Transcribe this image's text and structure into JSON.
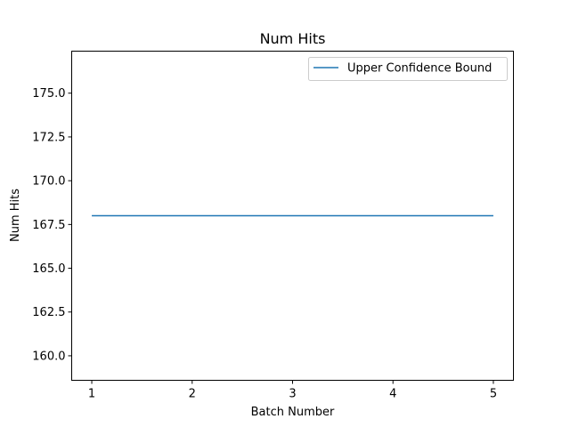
{
  "chart_data": {
    "type": "line",
    "title": "Num Hits",
    "xlabel": "Batch Number",
    "ylabel": "Num Hits",
    "x": [
      1,
      2,
      3,
      4,
      5
    ],
    "series": [
      {
        "name": "Upper Confidence Bound",
        "values": [
          168,
          168,
          168,
          168,
          168
        ],
        "color": "#1f77b4"
      }
    ],
    "xlim": [
      0.8,
      5.2
    ],
    "ylim": [
      158.6,
      177.4
    ],
    "xticks": [
      1,
      2,
      3,
      4,
      5
    ],
    "xtick_labels": [
      "1",
      "2",
      "3",
      "4",
      "5"
    ],
    "yticks": [
      160.0,
      162.5,
      165.0,
      167.5,
      170.0,
      172.5,
      175.0
    ],
    "ytick_labels": [
      "160.0",
      "162.5",
      "165.0",
      "167.5",
      "170.0",
      "172.5",
      "175.0"
    ],
    "grid": false,
    "legend_position": "top-right"
  }
}
